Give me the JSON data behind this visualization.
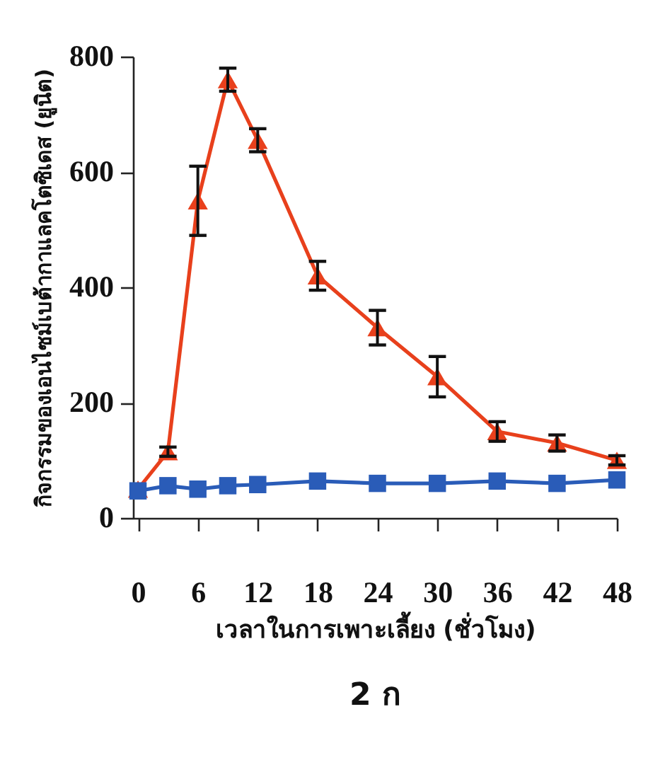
{
  "chart_data": {
    "type": "line",
    "xlabel": "เวลาในการเพาะเลี้ยง (ชั่วโมง)",
    "ylabel": "กิจกรรมของเอนไซม์เบต้ากาแลคโตซิเดส (ยูนิต)",
    "annotations": [
      "2 ก"
    ],
    "x": [
      0,
      3,
      6,
      9,
      12,
      18,
      24,
      30,
      36,
      42,
      48
    ],
    "series": [
      {
        "color": "#e8401c",
        "marker": "triangle",
        "values": [
          50,
          115,
          550,
          760,
          655,
          420,
          330,
          245,
          150,
          130,
          100
        ],
        "errors": [
          null,
          8,
          60,
          20,
          20,
          25,
          30,
          35,
          17,
          14,
          8
        ]
      },
      {
        "color": "#2a5cb8",
        "marker": "square",
        "values": [
          47,
          56,
          50,
          56,
          58,
          64,
          60,
          60,
          64,
          60,
          66
        ]
      }
    ],
    "xlim": [
      -0.5,
      48
    ],
    "xticks": [
      0,
      6,
      12,
      18,
      24,
      30,
      36,
      42,
      48
    ],
    "ylim": [
      0,
      800
    ],
    "yticks": [
      0,
      200,
      400,
      600,
      800
    ],
    "grid": false
  }
}
